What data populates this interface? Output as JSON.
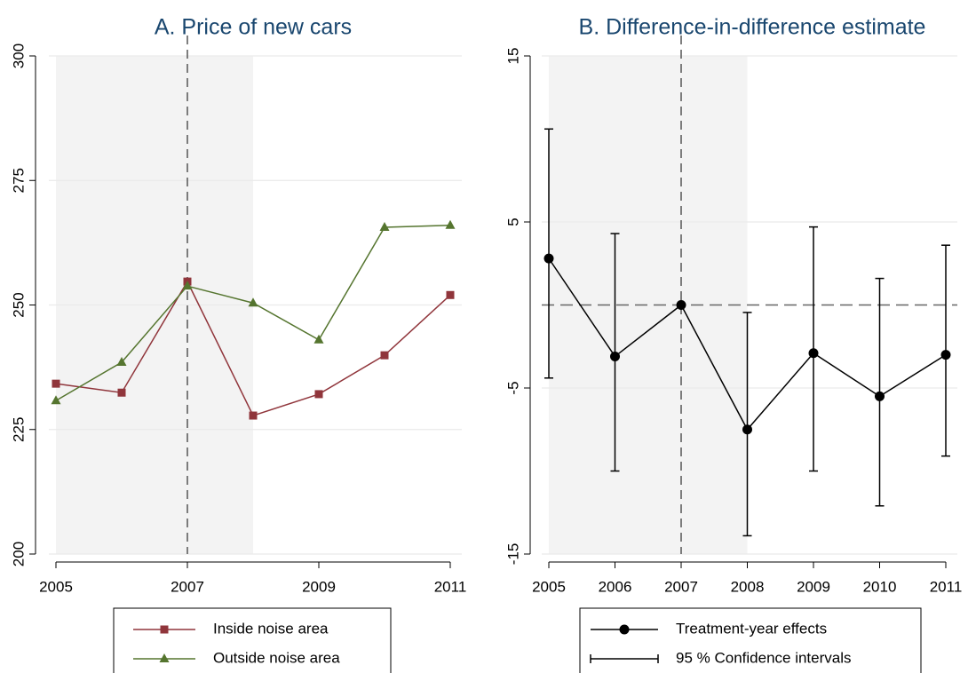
{
  "chart_data": [
    {
      "type": "line",
      "title": "A. Price of new cars",
      "x": [
        2005,
        2006,
        2007,
        2008,
        2009,
        2010,
        2011
      ],
      "series": [
        {
          "name": "Inside noise area",
          "color": "#90353b",
          "marker": "square",
          "values": [
            234.2,
            232.4,
            254.7,
            227.8,
            232.1,
            239.9,
            252.0
          ]
        },
        {
          "name": "Outside noise area",
          "color": "#55752f",
          "marker": "triangle",
          "values": [
            230.8,
            238.5,
            253.8,
            250.4,
            243.0,
            265.6,
            266.0
          ]
        }
      ],
      "xlim": [
        2005,
        2011
      ],
      "xticks": [
        2005,
        2007,
        2009,
        2011
      ],
      "ylim": [
        200,
        300
      ],
      "yticks": [
        200,
        225,
        250,
        275,
        300
      ],
      "grid": true,
      "shade": [
        2005,
        2008
      ],
      "vline": 2007,
      "legend": "bottom"
    },
    {
      "type": "line",
      "title": "B. Difference-in-difference estimate",
      "x": [
        2005,
        2006,
        2007,
        2008,
        2009,
        2010,
        2011
      ],
      "series": [
        {
          "name": "Treatment-year effects",
          "color": "#000000",
          "marker": "circle",
          "values": [
            2.8,
            -3.1,
            0,
            -7.5,
            -2.9,
            -5.5,
            -3.0
          ]
        },
        {
          "name": "95 % Confidence intervals",
          "color": "#000000",
          "lower": [
            -4.4,
            -10.0,
            null,
            -13.9,
            -10.0,
            -12.1,
            -9.1
          ],
          "upper": [
            10.6,
            4.3,
            null,
            -0.45,
            4.7,
            1.6,
            3.6
          ]
        }
      ],
      "xlim": [
        2005,
        2011
      ],
      "xticks": [
        2005,
        2006,
        2007,
        2008,
        2009,
        2010,
        2011
      ],
      "ylim": [
        -15,
        15
      ],
      "yticks": [
        -15,
        -5,
        5,
        15
      ],
      "grid": true,
      "shade": [
        2005,
        2008
      ],
      "vline": 2007,
      "hline": 0,
      "legend": "bottom"
    }
  ]
}
